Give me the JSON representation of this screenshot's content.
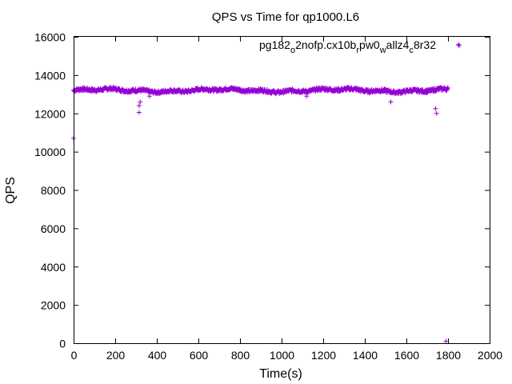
{
  "chart_data": {
    "type": "scatter",
    "title": "QPS vs Time for qp1000.L6",
    "xlabel": "Time(s)",
    "ylabel": "QPS",
    "xlim": [
      0,
      2000
    ],
    "ylim": [
      0,
      16000
    ],
    "xticks": [
      "0",
      "200",
      "400",
      "600",
      "800",
      "1000",
      "1200",
      "1400",
      "1600",
      "1800",
      "2000"
    ],
    "yticks": [
      "0",
      "2000",
      "4000",
      "6000",
      "8000",
      "10000",
      "12000",
      "14000",
      "16000"
    ],
    "grid": false,
    "legend_position": "top-right",
    "series": [
      {
        "name": "pg182_o2nofp.cx10b_rpw0_wallz4_c8r32",
        "legend_parts": [
          {
            "text": "pg182",
            "sub": false
          },
          {
            "text": "o",
            "sub": true
          },
          {
            "text": "2nofp.cx10b",
            "sub": false
          },
          {
            "text": "r",
            "sub": true
          },
          {
            "text": "pw0",
            "sub": false
          },
          {
            "text": "w",
            "sub": true
          },
          {
            "text": "allz4",
            "sub": false
          },
          {
            "text": "c",
            "sub": true
          },
          {
            "text": "8r32",
            "sub": false
          }
        ],
        "color": "#9400d3",
        "marker": "+",
        "bulk": {
          "x_start": 0,
          "x_end": 1800,
          "step": 2,
          "y_baseline": 13200
        },
        "outliers": [
          {
            "x": 0,
            "y": 10700
          },
          {
            "x": 315,
            "y": 12050
          },
          {
            "x": 315,
            "y": 12400
          },
          {
            "x": 320,
            "y": 12600
          },
          {
            "x": 365,
            "y": 12900
          },
          {
            "x": 1120,
            "y": 12900
          },
          {
            "x": 1525,
            "y": 12600
          },
          {
            "x": 1740,
            "y": 12250
          },
          {
            "x": 1745,
            "y": 12000
          },
          {
            "x": 1790,
            "y": 100
          },
          {
            "x": 1850,
            "y": 15600
          }
        ]
      }
    ]
  }
}
